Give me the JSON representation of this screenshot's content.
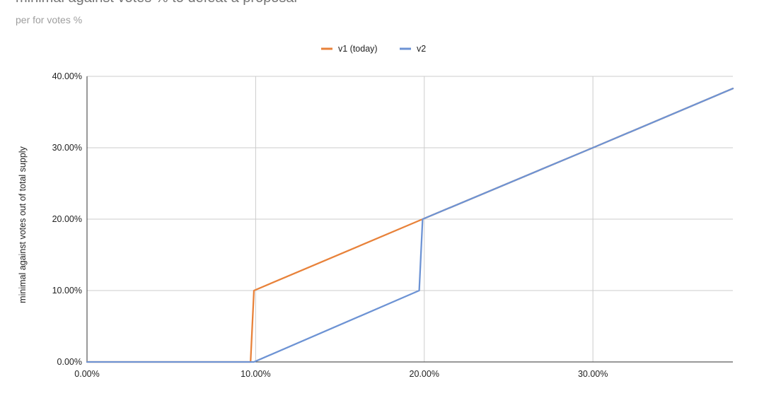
{
  "chart_data": {
    "type": "line",
    "title": "minimal against votes % to defeat a proposal",
    "subtitle": "per for votes %",
    "ylabel": "minimal against votes out of total supply",
    "xlim": [
      0,
      38.3
    ],
    "ylim": [
      0,
      40
    ],
    "x_ticks": [
      "0.00%",
      "10.00%",
      "20.00%",
      "30.00%"
    ],
    "x_tick_values": [
      0,
      10,
      20,
      30
    ],
    "y_ticks": [
      "0.00%",
      "10.00%",
      "20.00%",
      "30.00%",
      "40.00%"
    ],
    "y_tick_values": [
      0,
      10,
      20,
      30,
      40
    ],
    "grid": true,
    "legend": "top-center",
    "series": [
      {
        "name": "v1 (today)",
        "color": "#e8823a",
        "points": [
          [
            0,
            0
          ],
          [
            9.7,
            0
          ],
          [
            9.9,
            10
          ],
          [
            19.9,
            20
          ],
          [
            30,
            30
          ],
          [
            38.3,
            38.3
          ]
        ]
      },
      {
        "name": "v2",
        "color": "#6d93d4",
        "points": [
          [
            0,
            0
          ],
          [
            9.9,
            0
          ],
          [
            19.7,
            10
          ],
          [
            19.9,
            20
          ],
          [
            30,
            30
          ],
          [
            38.3,
            38.3
          ]
        ]
      }
    ]
  }
}
